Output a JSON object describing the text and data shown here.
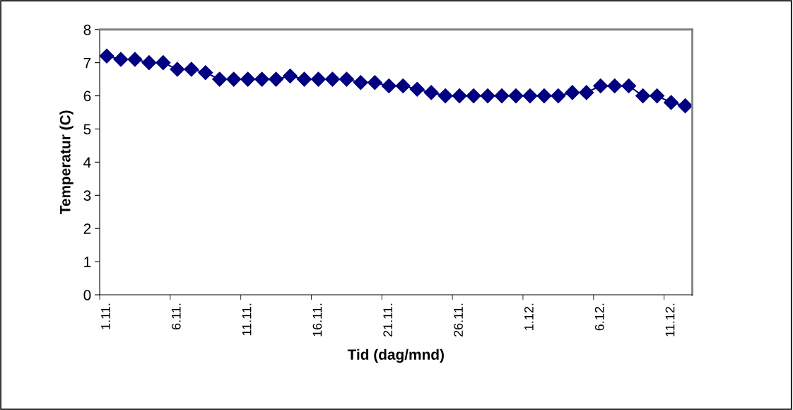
{
  "chart_data": {
    "type": "line",
    "xlabel": "Tid (dag/mnd)",
    "ylabel": "Temperatur (C)",
    "categories": [
      "1.11.",
      null,
      null,
      null,
      null,
      "6.11.",
      null,
      null,
      null,
      null,
      "11.11.",
      null,
      null,
      null,
      null,
      "16.11.",
      null,
      null,
      null,
      null,
      "21.11.",
      null,
      null,
      null,
      null,
      "26.11.",
      null,
      null,
      null,
      null,
      "1.12.",
      null,
      null,
      null,
      null,
      "6.12.",
      null,
      null,
      null,
      null,
      "11.12.",
      null
    ],
    "series": [
      {
        "color": "#000080",
        "values": [
          7.2,
          7.1,
          7.1,
          7.0,
          7.0,
          6.8,
          6.8,
          6.7,
          6.5,
          6.5,
          6.5,
          6.5,
          6.5,
          6.6,
          6.5,
          6.5,
          6.5,
          6.5,
          6.4,
          6.4,
          6.3,
          6.3,
          6.2,
          6.1,
          6.0,
          6.0,
          6.0,
          6.0,
          6.0,
          6.0,
          6.0,
          6.0,
          6.0,
          6.1,
          6.1,
          6.3,
          6.3,
          6.3,
          6.0,
          6.0,
          5.8,
          5.7
        ]
      }
    ],
    "ylim": [
      0,
      8
    ],
    "yticks": [
      0,
      1,
      2,
      3,
      4,
      5,
      6,
      7,
      8
    ],
    "marker": "diamond",
    "line_style": "solid",
    "grid": false,
    "legend": false
  }
}
